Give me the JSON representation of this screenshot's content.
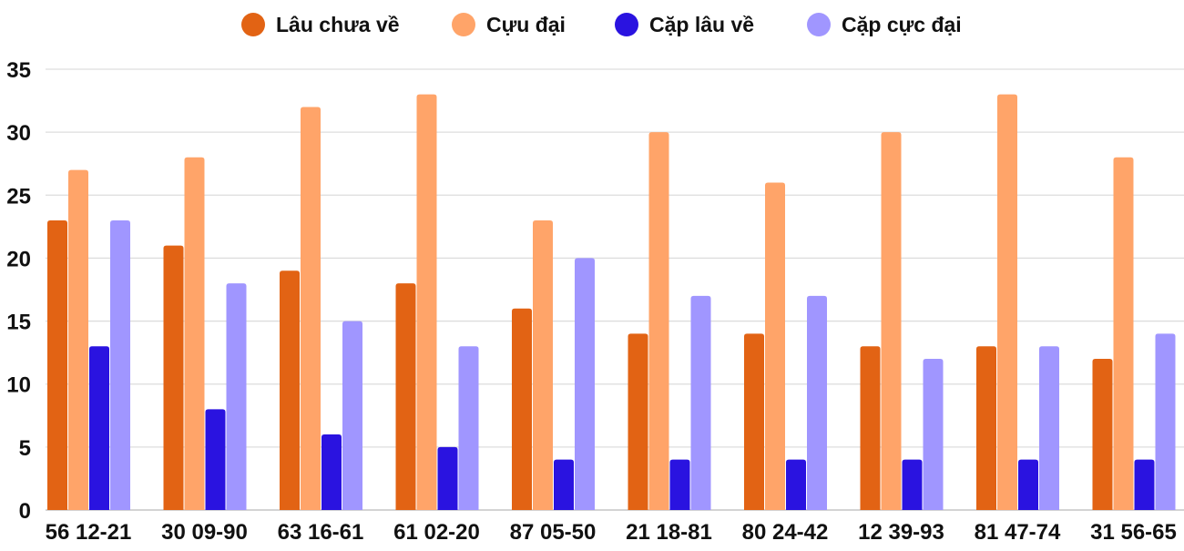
{
  "chart_data": {
    "type": "bar",
    "title": "",
    "xlabel": "",
    "ylabel": "",
    "ylim": [
      0,
      35
    ],
    "yticks": [
      0,
      5,
      10,
      15,
      20,
      25,
      30,
      35
    ],
    "grid": true,
    "legend_position": "top-center",
    "categories": [
      "56 12-21",
      "30 09-90",
      "63 16-61",
      "61 02-20",
      "87 05-50",
      "21 18-81",
      "80 24-42",
      "12 39-93",
      "81 47-74",
      "31 56-65"
    ],
    "series": [
      {
        "name": "Lâu chưa về",
        "color": "#E26314",
        "values": [
          23,
          21,
          19,
          18,
          16,
          14,
          14,
          13,
          13,
          12
        ]
      },
      {
        "name": "Cựu đại",
        "color": "#FFA469",
        "values": [
          27,
          28,
          32,
          33,
          23,
          30,
          26,
          30,
          33,
          28
        ]
      },
      {
        "name": "Cặp lâu về",
        "color": "#2A13E0",
        "values": [
          13,
          8,
          6,
          5,
          4,
          4,
          4,
          4,
          4,
          4
        ]
      },
      {
        "name": "Cặp cực đại",
        "color": "#A096FF",
        "values": [
          23,
          18,
          15,
          13,
          20,
          17,
          17,
          12,
          13,
          14
        ]
      }
    ]
  }
}
